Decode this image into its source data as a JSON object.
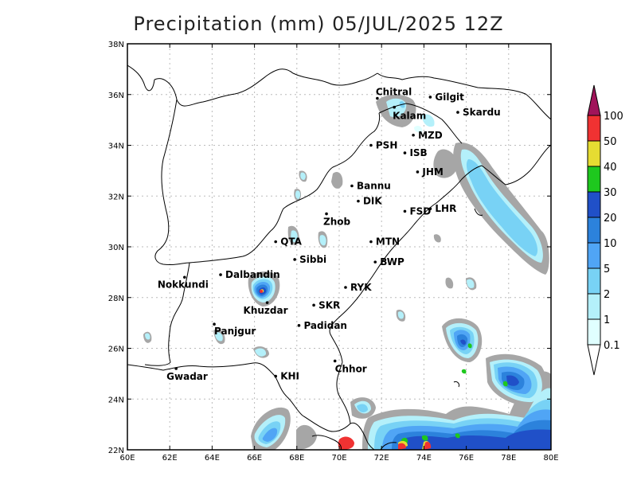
{
  "title": "Precipitation (mm) 05/JUL/2025 12Z",
  "axes": {
    "x_ticks": [
      "60E",
      "62E",
      "64E",
      "66E",
      "68E",
      "70E",
      "72E",
      "74E",
      "76E",
      "78E",
      "80E"
    ],
    "y_ticks": [
      "22N",
      "24N",
      "26N",
      "28N",
      "30N",
      "32N",
      "34N",
      "36N",
      "38N"
    ]
  },
  "cities": [
    {
      "name": "Chitral",
      "lon": 71.8,
      "lat": 35.85
    },
    {
      "name": "Gilgit",
      "lon": 74.3,
      "lat": 35.9
    },
    {
      "name": "Kalam",
      "lon": 72.6,
      "lat": 35.5
    },
    {
      "name": "Skardu",
      "lon": 75.6,
      "lat": 35.3
    },
    {
      "name": "MZD",
      "lon": 73.5,
      "lat": 34.4
    },
    {
      "name": "PSH",
      "lon": 71.5,
      "lat": 34.0
    },
    {
      "name": "ISB",
      "lon": 73.1,
      "lat": 33.7
    },
    {
      "name": "JHM",
      "lon": 73.7,
      "lat": 32.95
    },
    {
      "name": "Bannu",
      "lon": 70.6,
      "lat": 32.4
    },
    {
      "name": "DIK",
      "lon": 70.9,
      "lat": 31.8
    },
    {
      "name": "FSD",
      "lon": 73.1,
      "lat": 31.4
    },
    {
      "name": "LHR",
      "lon": 74.3,
      "lat": 31.5
    },
    {
      "name": "Zhob",
      "lon": 69.4,
      "lat": 31.3
    },
    {
      "name": "QTA",
      "lon": 67.0,
      "lat": 30.2
    },
    {
      "name": "MTN",
      "lon": 71.5,
      "lat": 30.2
    },
    {
      "name": "Sibbi",
      "lon": 67.9,
      "lat": 29.5
    },
    {
      "name": "BWP",
      "lon": 71.7,
      "lat": 29.4
    },
    {
      "name": "Dalbandin",
      "lon": 64.4,
      "lat": 28.9
    },
    {
      "name": "Nokkundi",
      "lon": 62.7,
      "lat": 28.8
    },
    {
      "name": "RYK",
      "lon": 70.3,
      "lat": 28.4
    },
    {
      "name": "Khuzdar",
      "lon": 66.6,
      "lat": 27.8
    },
    {
      "name": "SKR",
      "lon": 68.8,
      "lat": 27.7
    },
    {
      "name": "Panjgur",
      "lon": 64.1,
      "lat": 26.95
    },
    {
      "name": "Padidan",
      "lon": 68.1,
      "lat": 26.9
    },
    {
      "name": "Chhor",
      "lon": 69.8,
      "lat": 25.5
    },
    {
      "name": "KHI",
      "lon": 67.0,
      "lat": 24.9
    },
    {
      "name": "Gwadar",
      "lon": 62.3,
      "lat": 25.2
    }
  ],
  "colorbar": {
    "levels": [
      "0.1",
      "1",
      "2",
      "5",
      "10",
      "20",
      "30",
      "40",
      "50",
      "100"
    ],
    "colors": [
      "#a6a6a6",
      "#e0ffff",
      "#b4f0fa",
      "#78d2f5",
      "#50a5f5",
      "#2c82dc",
      "#2050c8",
      "#1ec81e",
      "#e6dc32",
      "#f03232",
      "#a0145a"
    ]
  }
}
